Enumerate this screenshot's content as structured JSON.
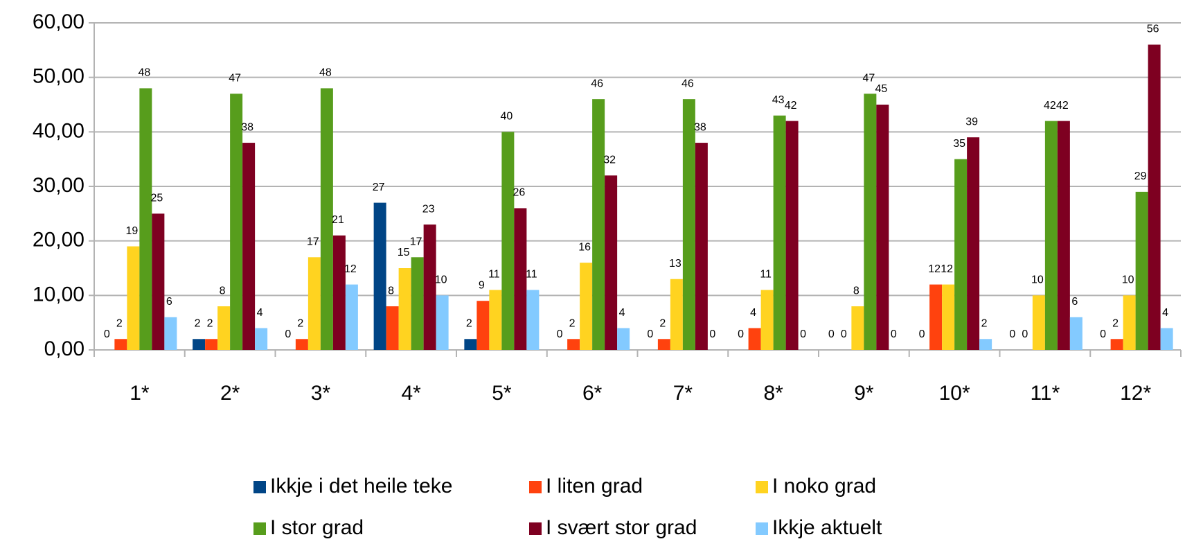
{
  "chart_data": {
    "type": "bar",
    "categories": [
      "1*",
      "2*",
      "3*",
      "4*",
      "5*",
      "6*",
      "7*",
      "8*",
      "9*",
      "10*",
      "11*",
      "12*"
    ],
    "series": [
      {
        "name": "Ikkje i det heile teke",
        "color": "#004586",
        "values": [
          0,
          2,
          0,
          27,
          2,
          0,
          0,
          0,
          0,
          0,
          0,
          0
        ]
      },
      {
        "name": "I liten grad",
        "color": "#ff420e",
        "values": [
          2,
          2,
          2,
          8,
          9,
          2,
          2,
          4,
          0,
          12,
          0,
          2
        ]
      },
      {
        "name": "I noko grad",
        "color": "#ffd320",
        "values": [
          19,
          8,
          17,
          15,
          11,
          16,
          13,
          11,
          8,
          12,
          10,
          10
        ]
      },
      {
        "name": "I stor grad",
        "color": "#579d1c",
        "values": [
          48,
          47,
          48,
          17,
          40,
          46,
          46,
          43,
          47,
          35,
          42,
          29
        ]
      },
      {
        "name": "I svært stor grad",
        "color": "#7e0021",
        "values": [
          25,
          38,
          21,
          23,
          26,
          32,
          38,
          42,
          45,
          39,
          42,
          56
        ]
      },
      {
        "name": "Ikkje aktuelt",
        "color": "#83caff",
        "values": [
          6,
          4,
          12,
          10,
          11,
          4,
          0,
          0,
          0,
          2,
          6,
          4
        ]
      }
    ],
    "ylim": [
      0,
      60
    ],
    "yticks": [
      {
        "value": 0,
        "label": "0,00"
      },
      {
        "value": 10,
        "label": "10,00"
      },
      {
        "value": 20,
        "label": "20,00"
      },
      {
        "value": 30,
        "label": "30,00"
      },
      {
        "value": 40,
        "label": "40,00"
      },
      {
        "value": 50,
        "label": "50,00"
      },
      {
        "value": 60,
        "label": "60,00"
      }
    ],
    "grid": true,
    "legend": "bottom"
  }
}
